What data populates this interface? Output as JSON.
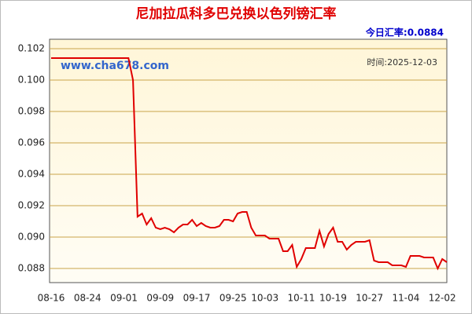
{
  "chart_data": {
    "type": "line",
    "title": "尼加拉瓜科多巴兑换以色列镑汇率",
    "today_rate": "今日汇率:0.0884",
    "date": "时间:2025-12-03",
    "watermark": "www.cha678.com",
    "categories": [
      "08-16",
      null,
      null,
      null,
      null,
      null,
      null,
      null,
      "08-24",
      null,
      null,
      null,
      null,
      null,
      null,
      null,
      "09-01",
      null,
      null,
      null,
      null,
      null,
      null,
      null,
      "09-09",
      null,
      null,
      null,
      null,
      null,
      null,
      null,
      "09-17",
      null,
      null,
      null,
      null,
      null,
      null,
      null,
      "09-25",
      null,
      null,
      null,
      null,
      null,
      null,
      "10-03",
      null,
      null,
      null,
      null,
      null,
      null,
      null,
      "10-11",
      null,
      null,
      null,
      null,
      null,
      null,
      "10-19",
      null,
      null,
      null,
      null,
      null,
      null,
      null,
      "10-27",
      null,
      null,
      null,
      null,
      null,
      null,
      null,
      "11-04",
      null,
      null,
      null,
      null,
      null,
      null,
      null,
      "12-02",
      null
    ],
    "series": [
      {
        "name": "汇率",
        "color": "#e00000",
        "values": [
          0.1014,
          0.1014,
          0.1014,
          0.1014,
          0.1014,
          0.1014,
          0.1014,
          0.1014,
          0.1014,
          0.1014,
          0.1014,
          0.1014,
          0.1014,
          0.1014,
          0.1014,
          0.1014,
          0.1014,
          0.1014,
          0.1,
          0.0913,
          0.0915,
          0.0908,
          0.0912,
          0.0906,
          0.0905,
          0.0906,
          0.0905,
          0.0903,
          0.0906,
          0.0908,
          0.0908,
          0.0911,
          0.0907,
          0.0909,
          0.0907,
          0.0906,
          0.0906,
          0.0907,
          0.0911,
          0.0911,
          0.091,
          0.0915,
          0.0916,
          0.0916,
          0.0906,
          0.0901,
          0.0901,
          0.0901,
          0.0899,
          0.0899,
          0.0899,
          0.0891,
          0.0891,
          0.0895,
          0.0881,
          0.0886,
          0.0893,
          0.0893,
          0.0893,
          0.0904,
          0.0894,
          0.0902,
          0.0906,
          0.0897,
          0.0897,
          0.0892,
          0.0895,
          0.0897,
          0.0897,
          0.0897,
          0.0898,
          0.0885,
          0.0884,
          0.0884,
          0.0884,
          0.0882,
          0.0882,
          0.0882,
          0.0881,
          0.0888,
          0.0888,
          0.0888,
          0.0887,
          0.0887,
          0.0887,
          0.088,
          0.0886,
          0.0884
        ]
      }
    ],
    "ylim": [
      0.0871,
      0.1026
    ],
    "yticks": [
      0.102,
      {
        "value": 0.1,
        "label": "0.100"
      },
      0.098,
      0.096,
      0.094,
      0.092,
      {
        "value": 0.09,
        "label": "0.090"
      },
      0.088
    ],
    "grid": true
  }
}
